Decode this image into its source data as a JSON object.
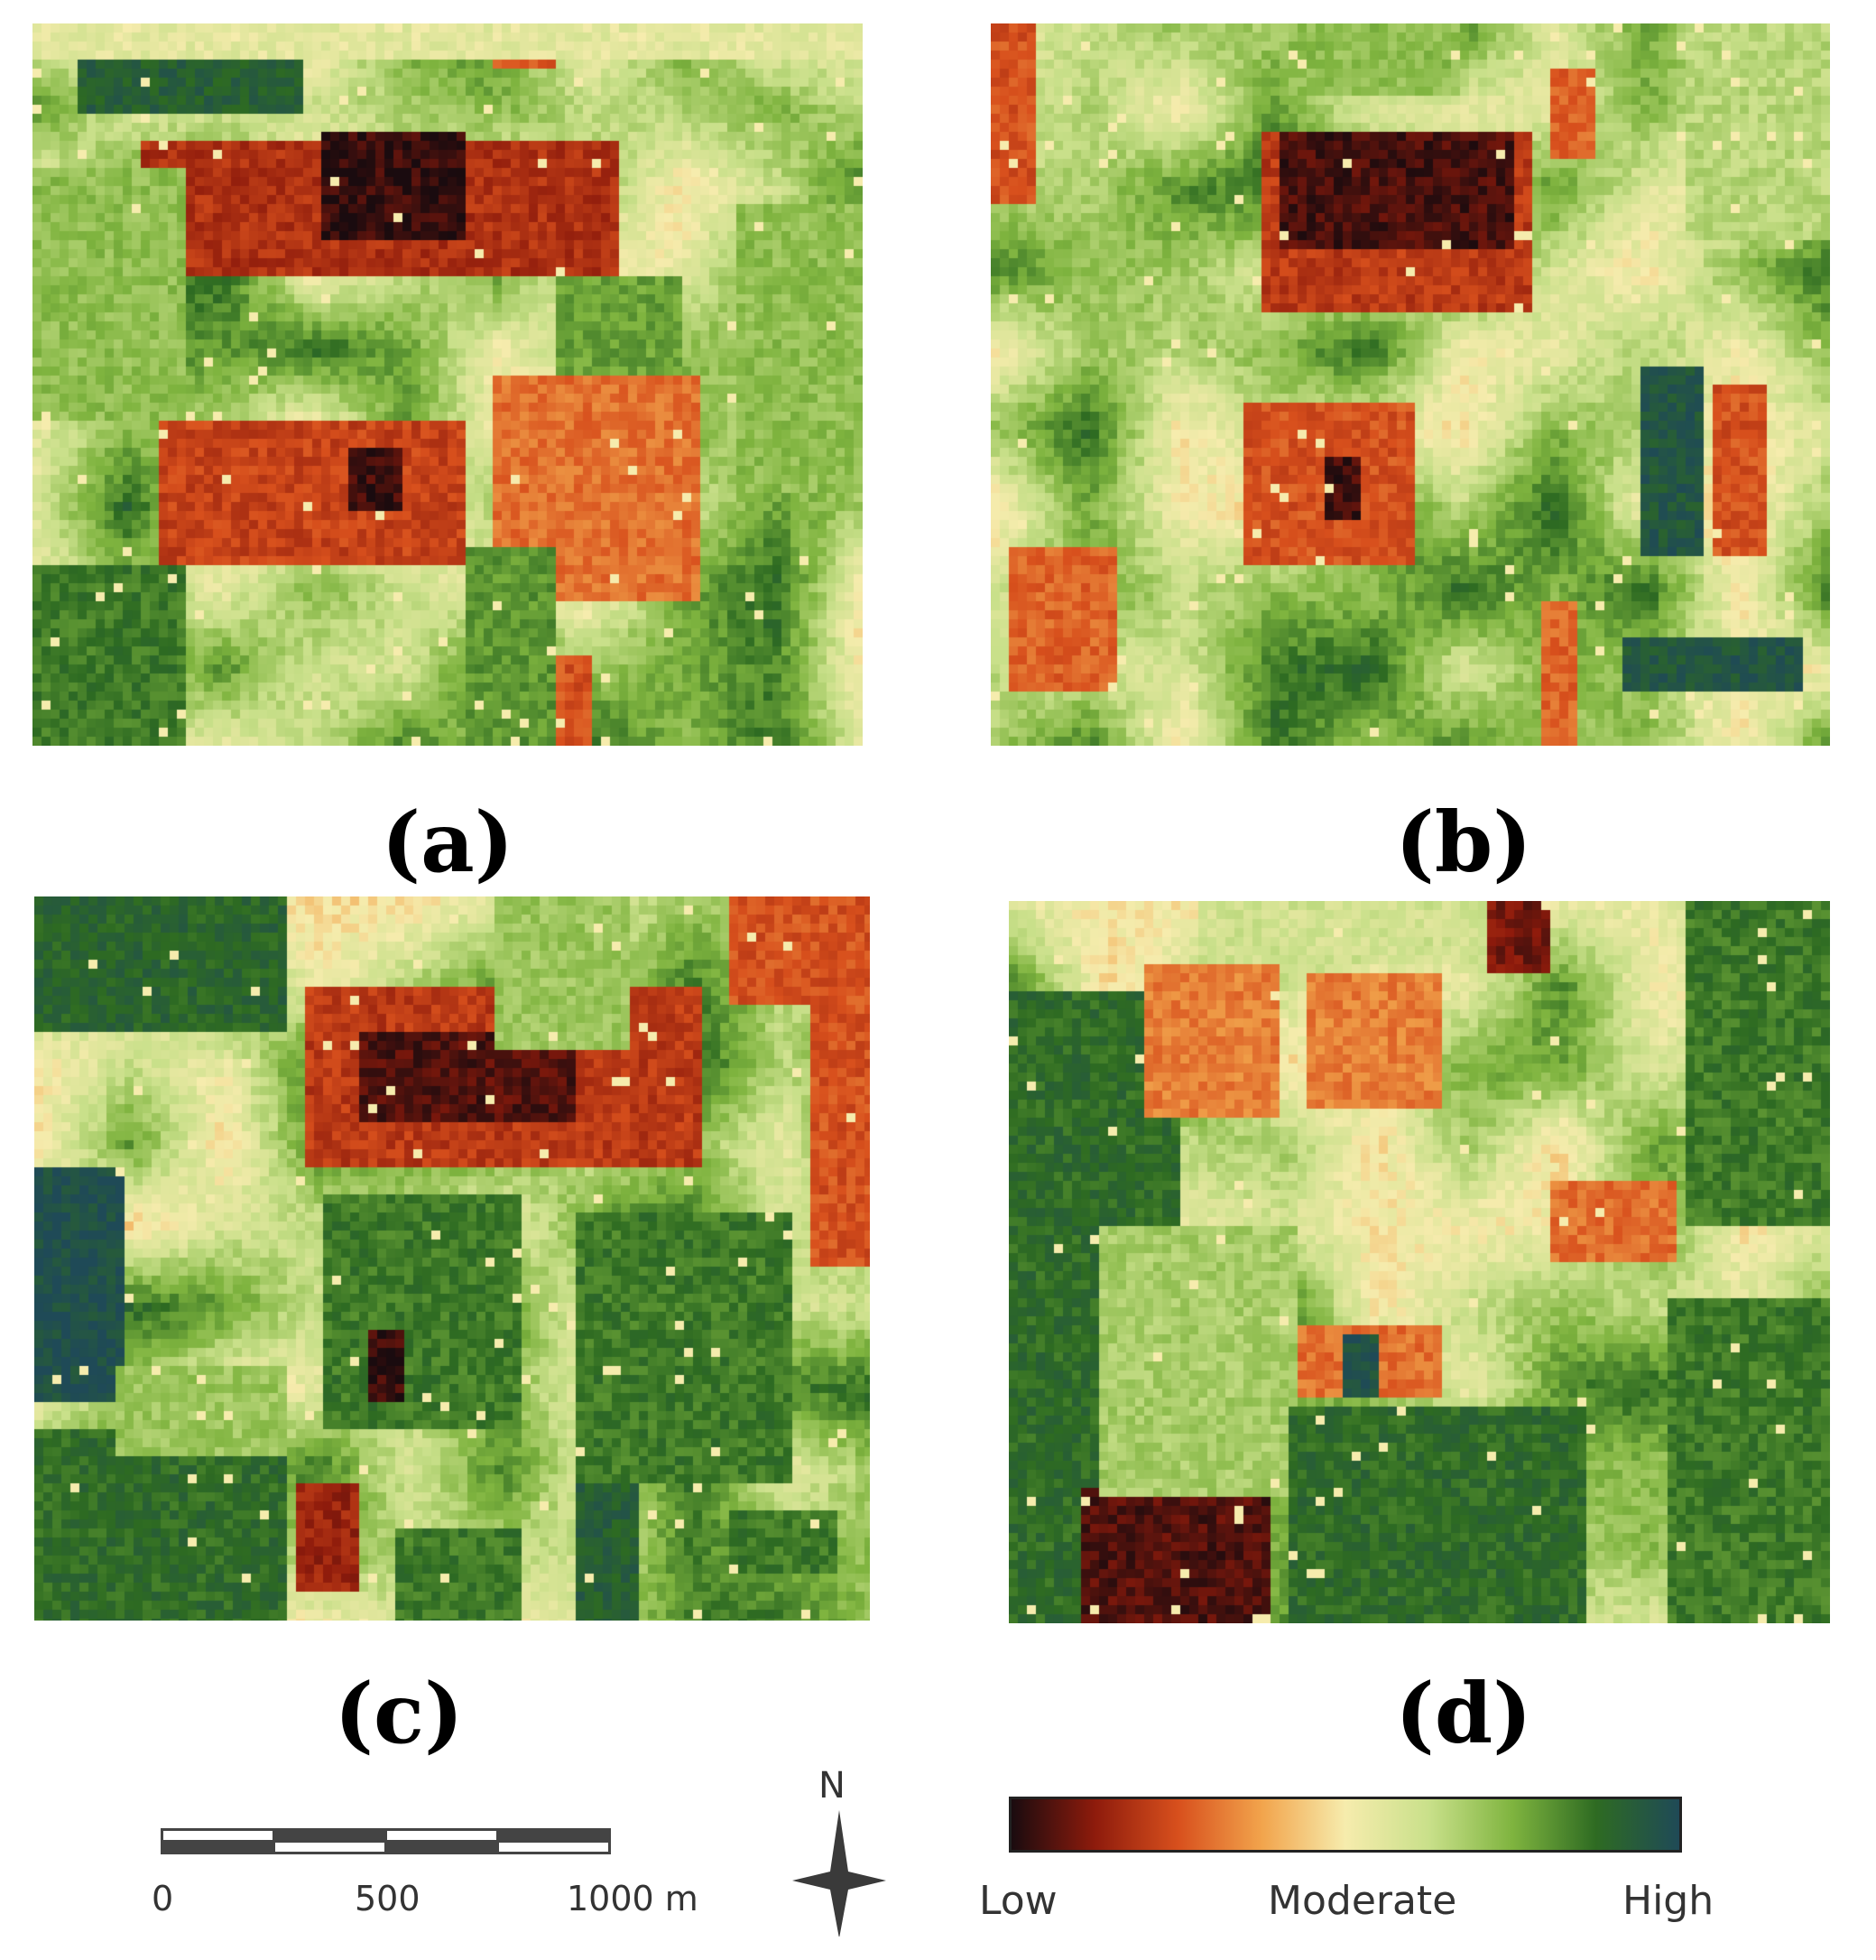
{
  "panels": [
    {
      "label": "(a)",
      "seed": 11,
      "blocks": [
        {
          "c": 0.18,
          "r": [
            0.12,
            0.16,
            0.7,
            0.34
          ]
        },
        {
          "c": 0.03,
          "r": [
            0.34,
            0.14,
            0.52,
            0.3
          ]
        },
        {
          "c": 0.22,
          "r": [
            0.15,
            0.55,
            0.52,
            0.75
          ]
        },
        {
          "c": 0.04,
          "r": [
            0.37,
            0.58,
            0.44,
            0.67
          ]
        },
        {
          "c": 0.3,
          "r": [
            0.55,
            0.48,
            0.8,
            0.8
          ]
        },
        {
          "c": 0.25,
          "r": [
            0.55,
            0.0,
            0.62,
            0.06
          ]
        },
        {
          "c": 0.25,
          "r": [
            0.56,
            0.87,
            0.67,
            1.0
          ]
        },
        {
          "c": 0.78,
          "r": [
            0.62,
            0.35,
            0.78,
            0.48
          ]
        },
        {
          "c": 0.92,
          "r": [
            0.05,
            0.0,
            0.32,
            0.12
          ]
        },
        {
          "c": 0.72,
          "r": [
            0.0,
            0.2,
            0.18,
            0.55
          ]
        },
        {
          "c": 0.85,
          "r": [
            0.0,
            0.75,
            0.18,
            1.0
          ]
        },
        {
          "c": 0.72,
          "r": [
            0.84,
            0.25,
            1.0,
            0.65
          ]
        },
        {
          "c": 0.8,
          "r": [
            0.52,
            0.72,
            0.62,
            1.0
          ]
        },
        {
          "c": 0.55,
          "r": [
            0.0,
            0.0,
            1.0,
            0.04
          ]
        }
      ]
    },
    {
      "label": "(b)",
      "seed": 23,
      "blocks": [
        {
          "c": 0.2,
          "r": [
            0.32,
            0.14,
            0.64,
            0.4
          ]
        },
        {
          "c": 0.05,
          "r": [
            0.34,
            0.14,
            0.62,
            0.31
          ]
        },
        {
          "c": 0.25,
          "r": [
            0.3,
            0.52,
            0.5,
            0.75
          ]
        },
        {
          "c": 0.04,
          "r": [
            0.39,
            0.6,
            0.44,
            0.68
          ]
        },
        {
          "c": 0.95,
          "r": [
            0.77,
            0.47,
            0.84,
            0.73
          ]
        },
        {
          "c": 0.25,
          "r": [
            0.86,
            0.49,
            0.92,
            0.73
          ]
        },
        {
          "c": 0.95,
          "r": [
            0.75,
            0.84,
            0.96,
            0.92
          ]
        },
        {
          "c": 0.25,
          "r": [
            0.0,
            0.0,
            0.05,
            0.25
          ]
        },
        {
          "c": 0.28,
          "r": [
            0.02,
            0.72,
            0.14,
            0.92
          ]
        },
        {
          "c": 0.28,
          "r": [
            0.65,
            0.8,
            0.69,
            1.0
          ]
        },
        {
          "c": 0.3,
          "r": [
            0.4,
            0.0,
            0.46,
            0.07
          ]
        },
        {
          "c": 0.72,
          "r": [
            0.35,
            0.0,
            0.55,
            0.1
          ]
        },
        {
          "c": 0.65,
          "r": [
            0.82,
            0.0,
            1.0,
            0.3
          ]
        },
        {
          "c": 0.28,
          "r": [
            0.66,
            0.06,
            0.72,
            0.18
          ]
        }
      ]
    },
    {
      "label": "(c)",
      "seed": 37,
      "blocks": [
        {
          "c": 0.2,
          "r": [
            0.32,
            0.12,
            0.79,
            0.36
          ]
        },
        {
          "c": 0.06,
          "r": [
            0.38,
            0.18,
            0.64,
            0.3
          ]
        },
        {
          "c": 0.25,
          "r": [
            0.82,
            0.0,
            1.0,
            0.14
          ]
        },
        {
          "c": 0.25,
          "r": [
            0.92,
            0.14,
            1.0,
            0.5
          ]
        },
        {
          "c": 0.98,
          "r": [
            0.0,
            0.36,
            0.1,
            0.68
          ]
        },
        {
          "c": 0.85,
          "r": [
            0.34,
            0.4,
            0.58,
            0.72
          ]
        },
        {
          "c": 0.03,
          "r": [
            0.39,
            0.59,
            0.44,
            0.68
          ]
        },
        {
          "c": 0.85,
          "r": [
            0.64,
            0.42,
            0.9,
            0.8
          ]
        },
        {
          "c": 0.15,
          "r": [
            0.31,
            0.8,
            0.38,
            0.94
          ]
        },
        {
          "c": 0.9,
          "r": [
            0.0,
            0.0,
            0.3,
            0.18
          ]
        },
        {
          "c": 0.88,
          "r": [
            0.0,
            0.72,
            0.3,
            1.0
          ]
        },
        {
          "c": 0.85,
          "r": [
            0.82,
            0.83,
            0.95,
            0.92
          ]
        },
        {
          "c": 0.92,
          "r": [
            0.64,
            0.8,
            0.72,
            1.0
          ]
        },
        {
          "c": 0.7,
          "r": [
            0.09,
            0.64,
            0.3,
            0.76
          ]
        },
        {
          "c": 0.85,
          "r": [
            0.43,
            0.86,
            0.58,
            1.0
          ]
        },
        {
          "c": 0.7,
          "r": [
            0.54,
            0.0,
            0.7,
            0.2
          ]
        }
      ]
    },
    {
      "label": "(d)",
      "seed": 53,
      "blocks": [
        {
          "c": 0.88,
          "r": [
            0.0,
            0.12,
            0.2,
            1.0
          ]
        },
        {
          "c": 0.06,
          "r": [
            0.08,
            0.81,
            0.31,
            1.0
          ]
        },
        {
          "c": 0.1,
          "r": [
            0.58,
            0.0,
            0.65,
            0.1
          ]
        },
        {
          "c": 0.32,
          "r": [
            0.16,
            0.08,
            0.32,
            0.3
          ]
        },
        {
          "c": 0.32,
          "r": [
            0.36,
            0.1,
            0.52,
            0.28
          ]
        },
        {
          "c": 0.3,
          "r": [
            0.65,
            0.38,
            0.81,
            0.5
          ]
        },
        {
          "c": 0.3,
          "r": [
            0.33,
            0.58,
            0.52,
            0.68
          ]
        },
        {
          "c": 0.97,
          "r": [
            0.4,
            0.6,
            0.44,
            0.68
          ]
        },
        {
          "c": 0.2,
          "r": [
            0.98,
            0.7,
            1.0,
            0.82
          ]
        },
        {
          "c": 0.85,
          "r": [
            0.82,
            0.0,
            1.0,
            0.45
          ]
        },
        {
          "c": 0.68,
          "r": [
            0.1,
            0.45,
            0.35,
            0.82
          ]
        },
        {
          "c": 0.88,
          "r": [
            0.33,
            0.7,
            0.7,
            1.0
          ]
        },
        {
          "c": 0.6,
          "r": [
            0.22,
            0.0,
            0.58,
            0.08
          ]
        },
        {
          "c": 0.85,
          "r": [
            0.8,
            0.55,
            1.0,
            1.0
          ]
        }
      ]
    }
  ],
  "scalebar": {
    "labels": [
      "0",
      "500",
      "1000 m"
    ]
  },
  "north": {
    "letter": "N"
  },
  "legend": {
    "low": "Low",
    "moderate": "Moderate",
    "high": "High",
    "colors": [
      "#1a0b0f",
      "#8e1b0c",
      "#d8501d",
      "#f2a44c",
      "#f6ecad",
      "#c9e08a",
      "#7fb43f",
      "#2e6b22",
      "#1f4a57"
    ]
  }
}
